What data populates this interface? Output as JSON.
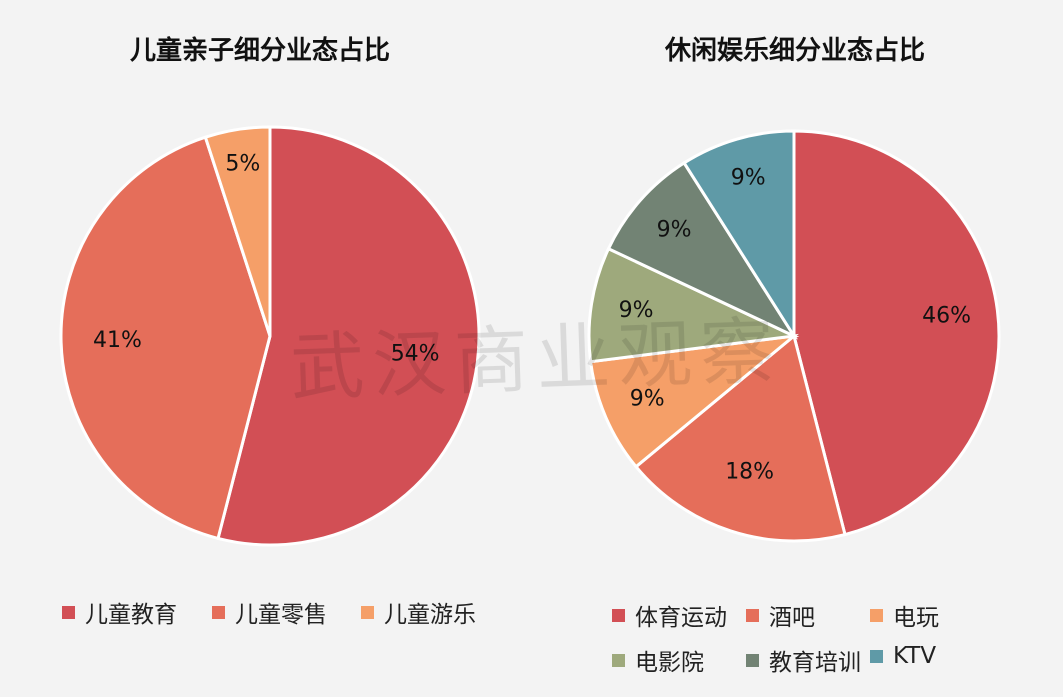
{
  "watermark": "武汉商业观察",
  "chart_data": [
    {
      "type": "pie",
      "title": "儿童亲子细分业态占比",
      "series": [
        {
          "name": "儿童教育",
          "value": 54,
          "label": "54%",
          "color": "#d24f55"
        },
        {
          "name": "儿童零售",
          "value": 41,
          "label": "41%",
          "color": "#e56e5a"
        },
        {
          "name": "儿童游乐",
          "value": 5,
          "label": "5%",
          "color": "#f59f68"
        }
      ],
      "legend": "bottom"
    },
    {
      "type": "pie",
      "title": "休闲娱乐细分业态占比",
      "series": [
        {
          "name": "体育运动",
          "value": 46,
          "label": "46%",
          "color": "#d24f55"
        },
        {
          "name": "酒吧",
          "value": 18,
          "label": "18%",
          "color": "#e56e5a"
        },
        {
          "name": "电玩",
          "value": 9,
          "label": "9%",
          "color": "#f59f68"
        },
        {
          "name": "电影院",
          "value": 9,
          "label": "9%",
          "color": "#9ea97c"
        },
        {
          "name": "教育培训",
          "value": 9,
          "label": "9%",
          "color": "#728374"
        },
        {
          "name": "KTV",
          "value": 9,
          "label": "9%",
          "color": "#5f9aa7"
        }
      ],
      "legend": "bottom"
    }
  ]
}
